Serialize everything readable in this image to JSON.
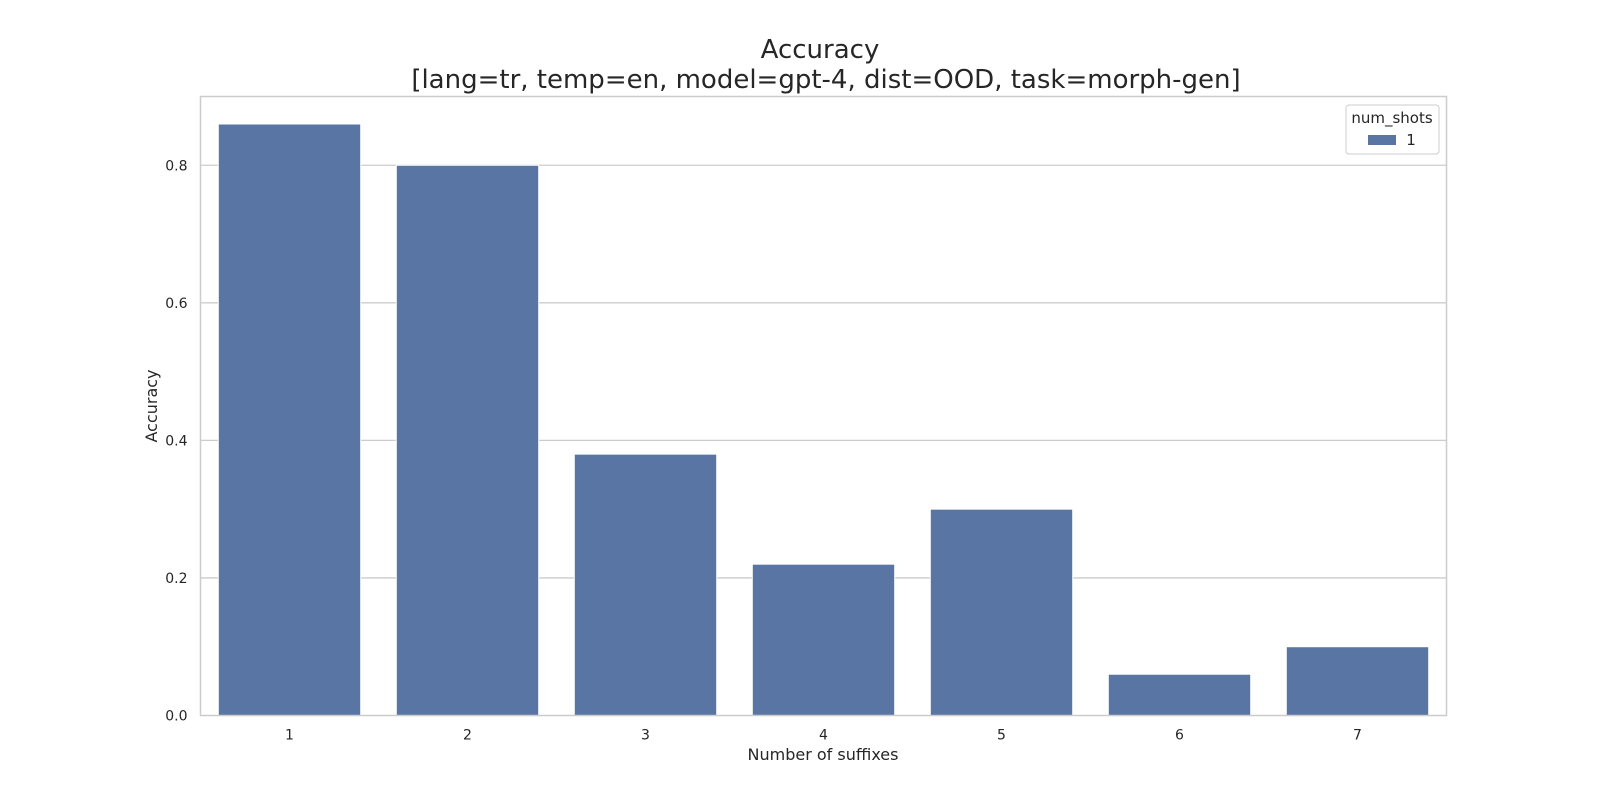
{
  "chart_data": {
    "type": "bar",
    "title": "Accuracy",
    "subtitle": "[lang=tr, temp=en, model=gpt-4, dist=OOD, task=morph-gen]",
    "xlabel": "Number of suffixes",
    "ylabel": "Accuracy",
    "categories": [
      "1",
      "2",
      "3",
      "4",
      "5",
      "6",
      "7"
    ],
    "series": [
      {
        "name": "1",
        "values": [
          0.86,
          0.8,
          0.38,
          0.22,
          0.3,
          0.06,
          0.1
        ]
      }
    ],
    "ylim": [
      0,
      0.9
    ],
    "yticks": [
      0.0,
      0.2,
      0.4,
      0.6,
      0.8
    ],
    "ytick_labels": [
      "0.0",
      "0.2",
      "0.4",
      "0.6",
      "0.8"
    ],
    "grid": "horizontal",
    "legend": {
      "title": "num_shots",
      "placement": "top-right"
    },
    "colors": {
      "bar": "#5875a4",
      "grid": "#cccccc",
      "frame": "#cccccc"
    }
  }
}
